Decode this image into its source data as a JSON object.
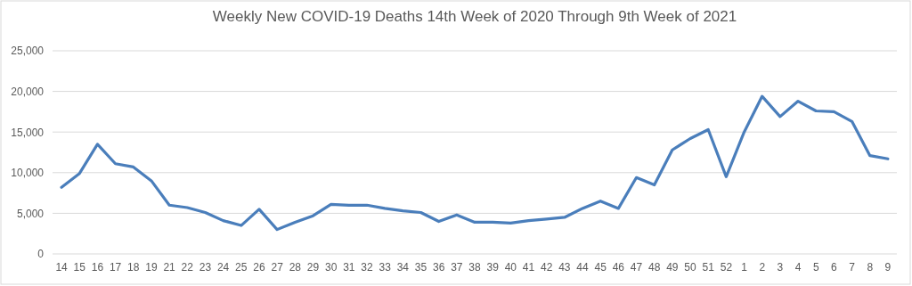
{
  "chart_data": {
    "type": "line",
    "title": "Weekly New COVID-19 Deaths 14th Week of 2020 Through 9th Week of 2021",
    "categories": [
      "14",
      "15",
      "16",
      "17",
      "18",
      "19",
      "21",
      "22",
      "23",
      "24",
      "25",
      "26",
      "27",
      "28",
      "29",
      "30",
      "31",
      "32",
      "33",
      "34",
      "35",
      "36",
      "37",
      "38",
      "39",
      "40",
      "41",
      "42",
      "43",
      "44",
      "45",
      "46",
      "47",
      "48",
      "49",
      "50",
      "51",
      "52",
      "1",
      "2",
      "3",
      "4",
      "5",
      "6",
      "7",
      "8",
      "9"
    ],
    "series": [
      {
        "color": "#4a7ebb",
        "values": [
          8200,
          9900,
          13500,
          11100,
          10700,
          9000,
          6000,
          5700,
          5100,
          4100,
          3500,
          5500,
          3000,
          3900,
          4700,
          6100,
          6000,
          6000,
          5600,
          5300,
          5100,
          4000,
          4800,
          3900,
          3900,
          3800,
          4100,
          4300,
          4500,
          5600,
          6500,
          5600,
          9400,
          8500,
          12800,
          14200,
          15300,
          9500,
          15000,
          19400,
          16900,
          18800,
          17600,
          17500,
          16300,
          12100,
          11700
        ]
      }
    ],
    "ylim": [
      0,
      25000
    ],
    "yticks": [
      {
        "value": 0,
        "label": "0"
      },
      {
        "value": 5000,
        "label": "5,000"
      },
      {
        "value": 10000,
        "label": "10,000"
      },
      {
        "value": 15000,
        "label": "15,000"
      },
      {
        "value": 20000,
        "label": "20,000"
      },
      {
        "value": 25000,
        "label": "25,000"
      }
    ],
    "grid": "y",
    "marker": "none",
    "line_style": "solid"
  }
}
